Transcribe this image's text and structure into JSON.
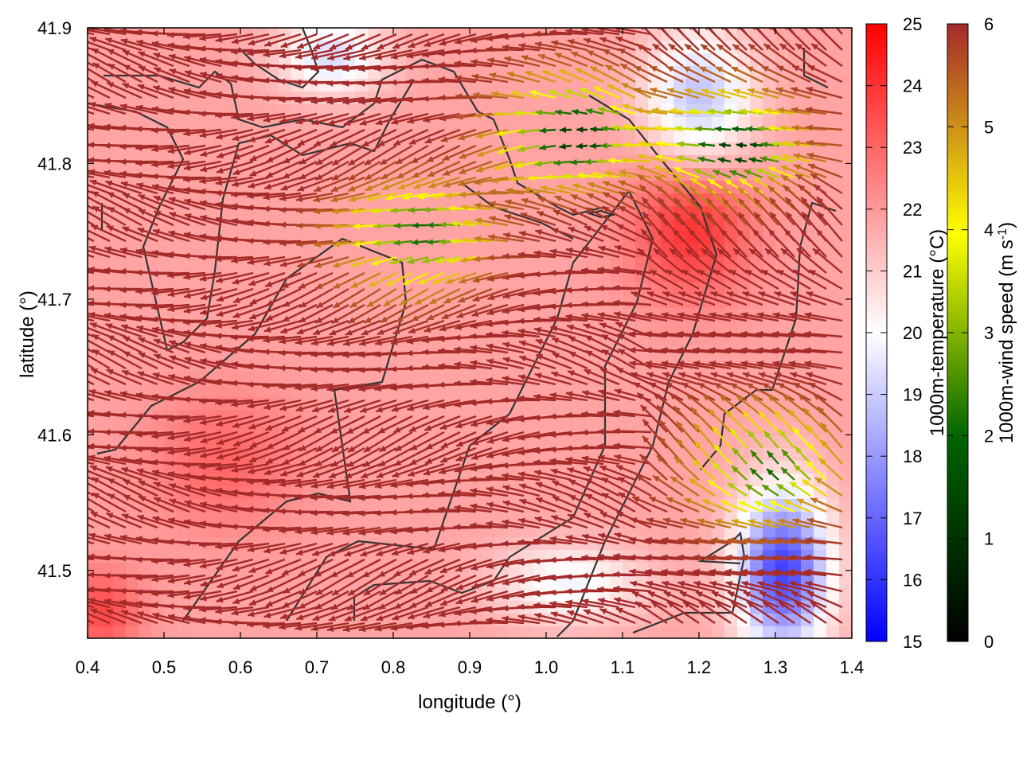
{
  "chart_data": {
    "type": "heatmap",
    "title": "",
    "xlabel": "longitude (°)",
    "ylabel": "latitude (°)",
    "xlim": [
      0.4,
      1.4
    ],
    "ylim": [
      41.45,
      41.9
    ],
    "xticks": [
      "0.4",
      "0.5",
      "0.6",
      "0.7",
      "0.8",
      "0.9",
      "1.0",
      "1.1",
      "1.2",
      "1.3",
      "1.4"
    ],
    "yticks": [
      "41.5",
      "41.6",
      "41.7",
      "41.8",
      "41.9"
    ],
    "xtick_values": [
      0.4,
      0.5,
      0.6,
      0.7,
      0.8,
      0.9,
      1.0,
      1.1,
      1.2,
      1.3,
      1.4
    ],
    "ytick_values": [
      41.5,
      41.6,
      41.7,
      41.8,
      41.9
    ],
    "grid": false,
    "colorbars": [
      {
        "label": "1000m-temperature (°C)",
        "range": [
          15,
          25
        ],
        "ticks": [
          "15",
          "16",
          "17",
          "18",
          "19",
          "20",
          "21",
          "22",
          "23",
          "24",
          "25"
        ],
        "colors": [
          "#0000ff",
          "#ffffff",
          "#ff0000"
        ]
      },
      {
        "label_main": "1000m-wind speed (m s",
        "label_sup": "-1",
        "label_end": ")",
        "range": [
          0,
          6
        ],
        "ticks": [
          "0",
          "1",
          "2",
          "3",
          "4",
          "5",
          "6"
        ],
        "colors": [
          "#000000",
          "#006400",
          "#ffff00",
          "#a52a2a"
        ]
      }
    ],
    "temperature_field_description": "warm (21-24 °C) over most of domain; hot spot near lon 1.2, lat 41.75; cool (16-18 °C) near lon 1.3, lat 41.5 and near lon 0.7 and 1.2, lat 41.88",
    "wind_field": {
      "dominant_direction": "westward",
      "dominant_speed": 6,
      "calm_regions": [
        {
          "lon": 1.05,
          "lat": 41.82,
          "speed": 1
        },
        {
          "lon": 0.85,
          "lat": 41.75,
          "speed": 2
        },
        {
          "lon": 1.3,
          "lat": 41.57,
          "speed": 2
        },
        {
          "lon": 1.26,
          "lat": 41.81,
          "speed": 1
        }
      ]
    },
    "colors": {
      "temp_low": "#0000ff",
      "temp_mid": "#ffffff",
      "temp_high": "#ff0000",
      "wind_high": "#a52a2a",
      "wind_mid": "#ffff00",
      "wind_low": "#006400",
      "contour": "#333333"
    }
  }
}
